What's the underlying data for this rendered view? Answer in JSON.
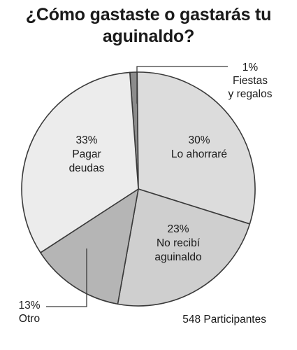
{
  "title": [
    "¿Cómo gastaste o gastarás tu",
    "aguinaldo?"
  ],
  "footnote": "548 Participantes",
  "chart_data": {
    "type": "pie",
    "title": "¿Cómo gastaste o gastarás tu aguinaldo?",
    "unit": "%",
    "slices": [
      {
        "label": "Fiestas y regalos",
        "lines": [
          "1%",
          "Fiestas",
          "y regalos"
        ],
        "value": 1,
        "color": "#8c8c8c"
      },
      {
        "label": "Lo ahorraré",
        "lines": [
          "30%",
          "Lo ahorraré"
        ],
        "value": 30,
        "color": "#dcdcdc"
      },
      {
        "label": "No recibí aguinaldo",
        "lines": [
          "23%",
          "No recibí",
          "aguinaldo"
        ],
        "value": 23,
        "color": "#cfcfcf"
      },
      {
        "label": "Otro",
        "lines": [
          "13%",
          "Otro"
        ],
        "value": 13,
        "color": "#b5b5b5"
      },
      {
        "label": "Pagar deudas",
        "lines": [
          "33%",
          "Pagar",
          "deudas"
        ],
        "value": 33,
        "color": "#ececec"
      }
    ]
  }
}
